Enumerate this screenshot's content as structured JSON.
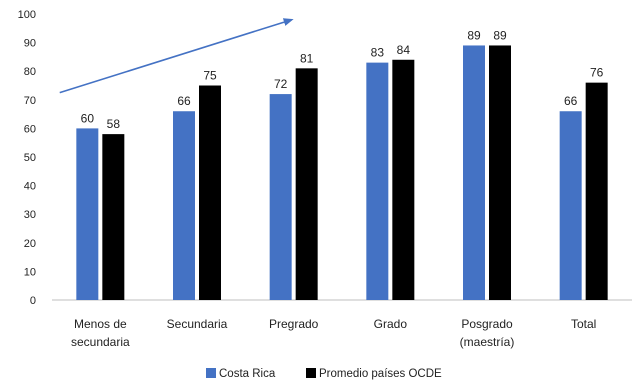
{
  "chart_data": {
    "type": "bar",
    "categories": [
      [
        "Menos de",
        "secundaria"
      ],
      [
        "Secundaria"
      ],
      [
        "Pregrado"
      ],
      [
        "Grado"
      ],
      [
        "Posgrado",
        "(maestría)"
      ],
      [
        "Total"
      ]
    ],
    "series": [
      {
        "name": "Costa Rica",
        "color": "#4472C4",
        "values": [
          60,
          66,
          72,
          83,
          89,
          66
        ]
      },
      {
        "name": "Promedio países OCDE",
        "color": "#000000",
        "values": [
          58,
          75,
          81,
          84,
          89,
          76
        ]
      }
    ],
    "yticks": [
      0,
      10,
      20,
      30,
      40,
      50,
      60,
      70,
      80,
      90,
      100
    ],
    "ylim": [
      0,
      100
    ],
    "grid": false,
    "legend": "bottom-center",
    "annotations": [
      {
        "type": "arrow",
        "color": "#4472C4",
        "from": {
          "category": 0,
          "value": 72.5
        },
        "to": {
          "category": 2.4,
          "value": 98
        }
      }
    ]
  }
}
